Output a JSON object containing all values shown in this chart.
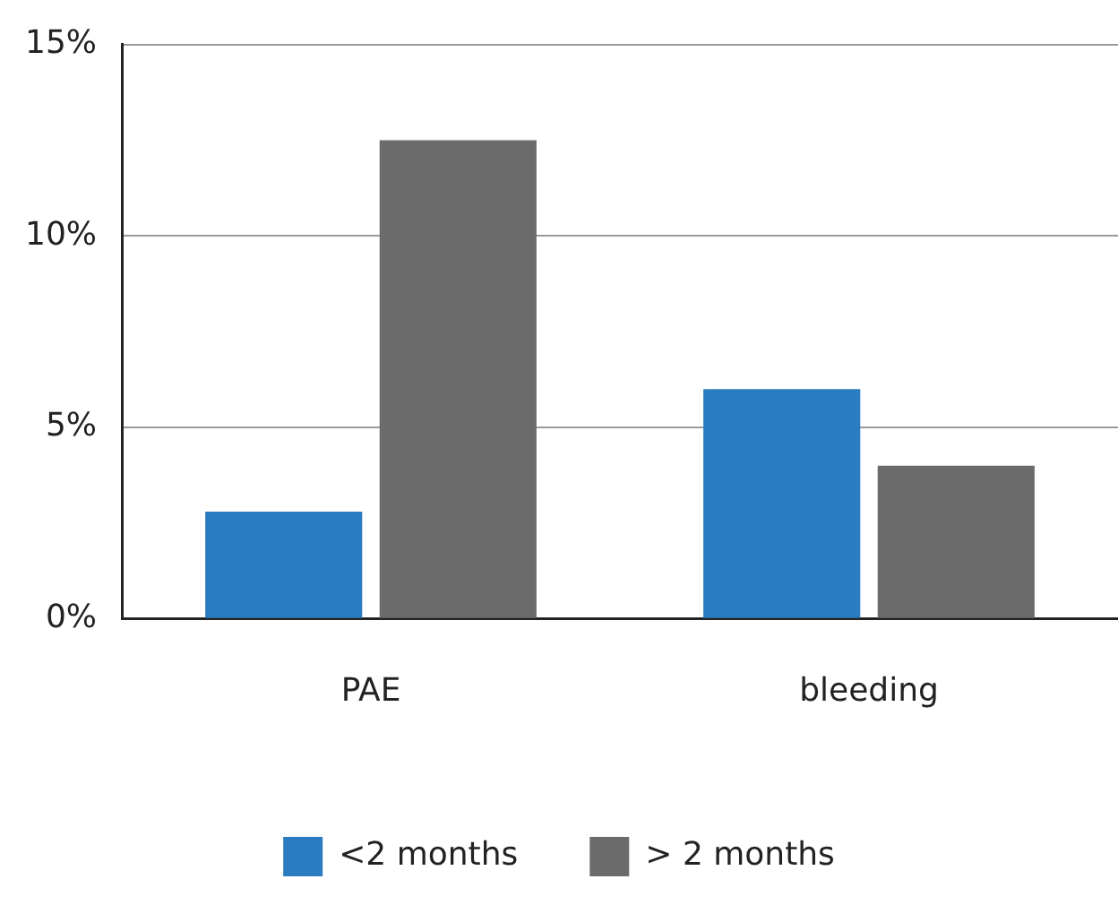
{
  "chart_data": {
    "type": "bar",
    "categories": [
      "PAE",
      "bleeding"
    ],
    "series": [
      {
        "name": "<2 months",
        "color": "#2a7bbf",
        "values": [
          2.8,
          6
        ]
      },
      {
        "name": "> 2 months",
        "color": "#6b6b6b",
        "values": [
          12.5,
          4
        ]
      }
    ],
    "ylim": [
      0,
      15
    ],
    "yticks": [
      {
        "value": 0,
        "label": "0%"
      },
      {
        "value": 5,
        "label": "5%"
      },
      {
        "value": 10,
        "label": "10%"
      },
      {
        "value": 15,
        "label": "15%"
      }
    ],
    "grid": "y",
    "legend": "bottom"
  }
}
